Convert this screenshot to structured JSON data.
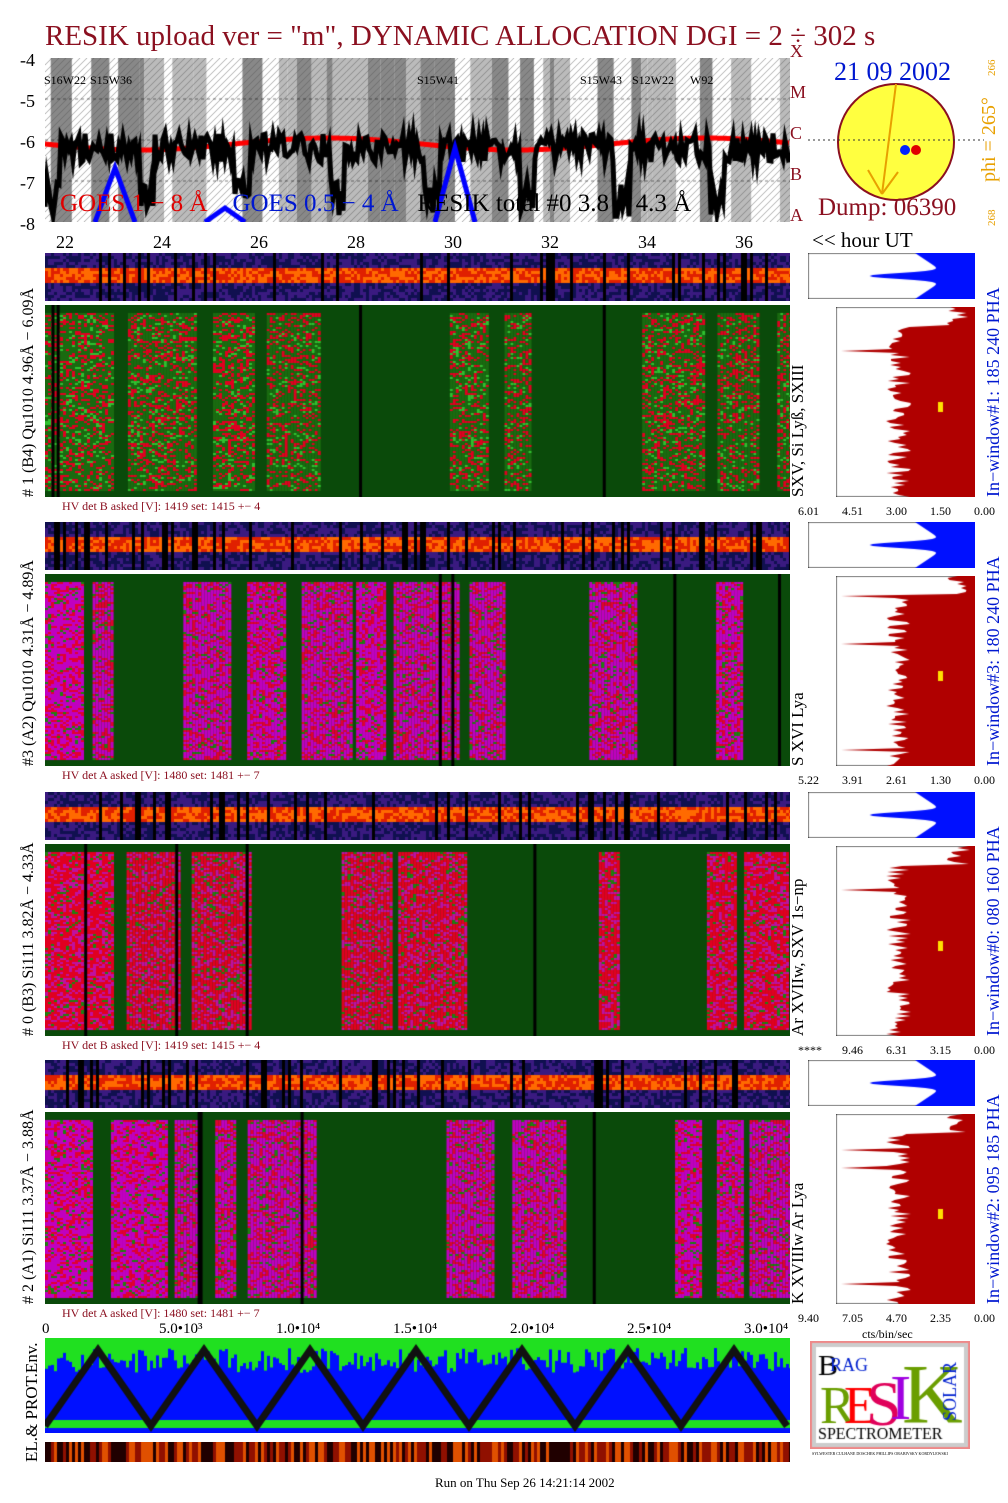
{
  "title": "RESIK upload ver = \"m\", DYNAMIC ALLOCATION  DGI =   2 ÷ 302 s",
  "top_plot": {
    "y_ticks": [
      "-4",
      "-5",
      "-6",
      "-7",
      "-8"
    ],
    "x_ticks": [
      "22",
      "24",
      "26",
      "28",
      "30",
      "32",
      "34",
      "36"
    ],
    "x_axis_label": "<< hour UT",
    "goes_classes": [
      "A",
      "B",
      "C",
      "M",
      "X"
    ],
    "region_labels": [
      "S16W22",
      "S15W36",
      "S15W41",
      "S15W43",
      "S12W22",
      "W92"
    ],
    "legend": [
      {
        "name": "GOES 1 − 8 Å",
        "color": "#ff0000"
      },
      {
        "name": "GOES 0.5 − 4 Å",
        "color": "#0000ff"
      },
      {
        "name": "RESIK total #0  3.8 − 4.3 Å",
        "color": "#000000"
      }
    ]
  },
  "sun": {
    "date": "21 09 2002",
    "phi": "phi = 265°",
    "phi_top": "266",
    "phi_bottom": "268",
    "dump": "Dump: 06390"
  },
  "panels": [
    {
      "left_label": "# 1 (B4) Qu1010 4.96Å − 6.09Å",
      "lines": "SXV, Si Lyß, SXIII",
      "window": "In−window#1:  185 240 PHA",
      "hv": "HV det B asked [V]:  1419 set:  1415  +−    4",
      "hist_ticks": [
        "6.01",
        "4.51",
        "3.00",
        "1.50",
        "0.00"
      ],
      "style": "green"
    },
    {
      "left_label": "#3 (A2) Qu1010  4.31Å − 4.89Å",
      "lines": "S XVI Lya",
      "window": "In−window#3:  180 240 PHA",
      "hv": "HV det A asked [V]:  1480 set:  1481  +−    7",
      "hist_ticks": [
        "5.22",
        "3.91",
        "2.61",
        "1.30",
        "0.00"
      ],
      "style": "magenta"
    },
    {
      "left_label": "# 0 (B3) Si111  3.82Å − 4.33Å",
      "lines": "Ar XVIIw,  SXV  1s−np",
      "window": "In−window#0:  080 160 PHA",
      "hv": "HV det B asked [V]:  1419 set:  1415  +−    4",
      "hist_ticks": [
        "****",
        "9.46",
        "6.31",
        "3.15",
        "0.00"
      ],
      "style": "red"
    },
    {
      "left_label": "# 2 (A1) Si111  3.37Å − 3.88Å",
      "lines": "K XVIIIw  Ar Lya",
      "window": "In−window#2:  095 185 PHA",
      "hv": "HV det A asked [V]:  1480 set:  1481  +−    7",
      "hist_ticks": [
        "9.40",
        "7.05",
        "4.70",
        "2.35",
        "0.00"
      ],
      "style": "magenta"
    }
  ],
  "bottom": {
    "x_ticks": [
      "0",
      "5.0•10³",
      "1.0•10⁴",
      "1.5•10⁴",
      "2.0•10⁴",
      "2.5•10⁴",
      "3.0•10⁴"
    ],
    "y_label": "EL.& PROT.Env.",
    "hist_unit": "cts/bin/sec",
    "run": "Run on Thu Sep 26 14:21:14 2002"
  },
  "logo": {
    "text": "BRAGG RESIK SOLAR SPECTROMETER",
    "caption": "SYLWESTER CULHANE DOSCHEK PHILLIPS ORABIVSKY KORDYLEWSKI"
  },
  "colors": {
    "title": "#8b1020",
    "goes_long": "#ff0000",
    "goes_short": "#0000ff",
    "resik": "#000000",
    "sun": "#ffff40",
    "hist_main": "#b00000",
    "hist_small": "#0010ff"
  }
}
